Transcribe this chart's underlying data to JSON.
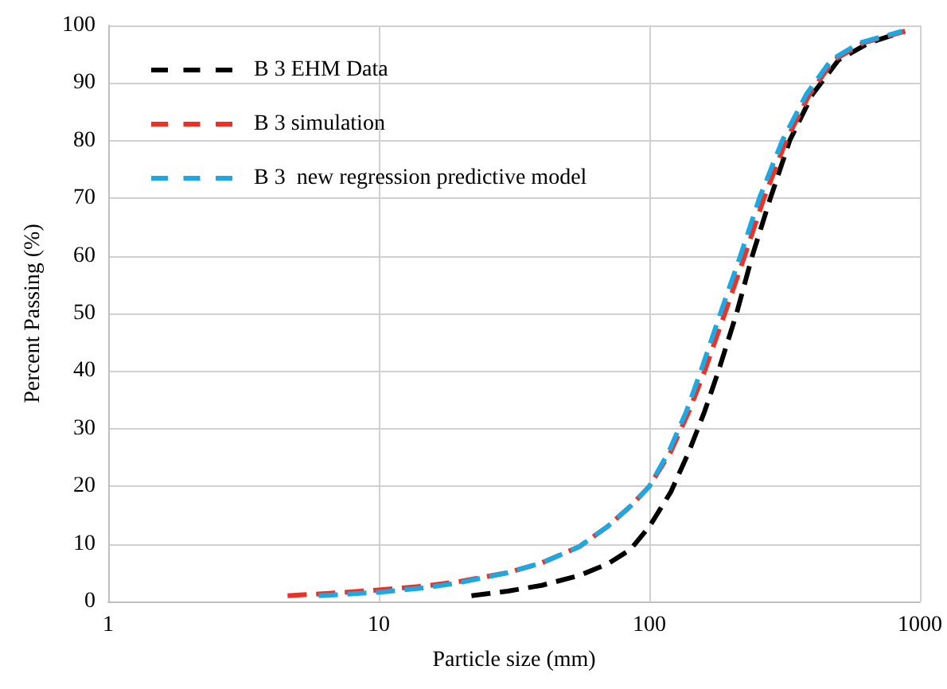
{
  "chart_data": {
    "type": "line",
    "xlabel": "Particle size (mm)",
    "ylabel": "Percent Passing (%)",
    "log": "x",
    "xlim": [
      1,
      1000
    ],
    "xticks": [
      1,
      10,
      100,
      1000
    ],
    "ylim": [
      0,
      100
    ],
    "yticks": [
      0,
      10,
      20,
      30,
      40,
      50,
      60,
      70,
      80,
      90,
      100
    ],
    "grid": true,
    "legend": "top left",
    "marker": "none",
    "line_style": "dashed",
    "series": [
      {
        "name": "B 3 EHM Data",
        "color": "#000000",
        "x": [
          22,
          30,
          40,
          55,
          70,
          85,
          100,
          120,
          140,
          160,
          180,
          210,
          240,
          280,
          330,
          400,
          500,
          650,
          880
        ],
        "values": [
          1,
          1.8,
          2.8,
          4.5,
          6.5,
          9,
          13,
          19,
          26,
          33,
          40,
          50,
          60,
          70,
          80,
          88,
          94,
          97,
          99
        ]
      },
      {
        "name": "B 3 simulation",
        "color": "#ee3124",
        "x": [
          4.6,
          7,
          10,
          15,
          20,
          30,
          40,
          55,
          70,
          85,
          100,
          120,
          140,
          160,
          190,
          225,
          265,
          320,
          390,
          480,
          620,
          880
        ],
        "values": [
          1,
          1.5,
          2,
          2.7,
          3.5,
          5,
          6.7,
          9.5,
          13,
          16.5,
          20,
          26,
          33,
          40,
          50,
          60,
          70,
          80,
          88,
          94,
          97,
          99
        ]
      },
      {
        "name": "B 3  new regression predictive model",
        "color": "#1ea7e1",
        "x": [
          6,
          10,
          15,
          20,
          30,
          40,
          55,
          70,
          85,
          100,
          118,
          137,
          155,
          183,
          217,
          255,
          310,
          380,
          470,
          600,
          860
        ],
        "values": [
          1,
          1.6,
          2.4,
          3.3,
          5,
          6.7,
          9.5,
          13,
          16.5,
          20,
          26,
          33,
          40,
          50,
          60,
          70,
          80,
          88,
          94,
          97,
          99
        ]
      }
    ]
  }
}
